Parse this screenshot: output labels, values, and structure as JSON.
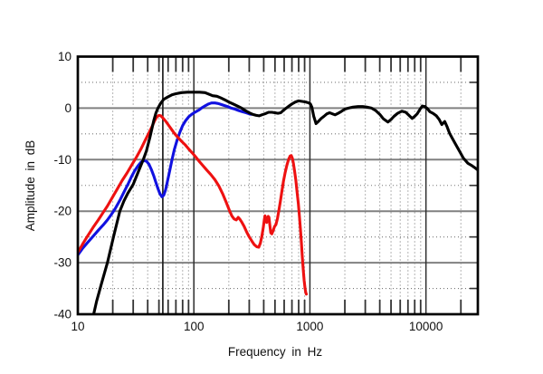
{
  "chart_data": {
    "type": "line",
    "title": "",
    "xlabel": "Frequency in Hz",
    "ylabel": "Amplitude in dB",
    "x_scale": "log",
    "xlim": [
      10,
      28000
    ],
    "ylim": [
      -40,
      10
    ],
    "grid": true,
    "legend_position": "none",
    "x_labeled_ticks": [
      {
        "value": 10,
        "label": "10"
      },
      {
        "value": 100,
        "label": "100"
      },
      {
        "value": 1000,
        "label": "1000"
      },
      {
        "value": 10000,
        "label": "10000"
      }
    ],
    "y_labeled_ticks": [
      {
        "value": 10,
        "label": "10"
      },
      {
        "value": 0,
        "label": "0"
      },
      {
        "value": -10,
        "label": "-10"
      },
      {
        "value": -20,
        "label": "-20"
      },
      {
        "value": -30,
        "label": "-30"
      },
      {
        "value": -40,
        "label": "-40"
      }
    ],
    "x_solid_gridlines": [
      100,
      1000,
      10000
    ],
    "x_minor_gridlines": [
      20,
      30,
      40,
      50,
      60,
      70,
      80,
      90,
      200,
      300,
      400,
      500,
      600,
      700,
      800,
      900,
      2000,
      3000,
      4000,
      5000,
      6000,
      7000,
      8000,
      9000,
      20000
    ],
    "y_major_gridlines": [
      0,
      -10,
      -20,
      -30
    ],
    "y_minor_gridlines": [
      5,
      -5,
      -15,
      -25,
      -35
    ],
    "cursor_marker_hz": 54,
    "style": {
      "background": "#ffffff",
      "border_color": "#000000",
      "major_h_grid_color": "#808080",
      "major_v_grid_color": "#2e2e2e",
      "minor_grid_color": "#777777",
      "tick_color": "#333333",
      "marker_color": "#1f1f1f",
      "text_color": "#111111"
    },
    "series": [
      {
        "name": "red-curve",
        "color": "#ee1111",
        "points": [
          [
            10,
            -28
          ],
          [
            11,
            -26.4
          ],
          [
            12,
            -25
          ],
          [
            13.5,
            -23.2
          ],
          [
            15,
            -21.7
          ],
          [
            16.6,
            -20.2
          ],
          [
            18,
            -19
          ],
          [
            20,
            -17.2
          ],
          [
            22,
            -15.6
          ],
          [
            24,
            -14.1
          ],
          [
            26.5,
            -12.6
          ],
          [
            29,
            -11.1
          ],
          [
            32,
            -9.5
          ],
          [
            35,
            -7.9
          ],
          [
            38,
            -6.3
          ],
          [
            41,
            -4.8
          ],
          [
            43.5,
            -3.6
          ],
          [
            46,
            -2.4
          ],
          [
            48,
            -1.7
          ],
          [
            50,
            -1.4
          ],
          [
            52,
            -1.5
          ],
          [
            54,
            -1.9
          ],
          [
            57,
            -2.5
          ],
          [
            60,
            -3.2
          ],
          [
            64,
            -4.1
          ],
          [
            68,
            -4.9
          ],
          [
            73,
            -5.7
          ],
          [
            78,
            -6.4
          ],
          [
            84,
            -7.1
          ],
          [
            90,
            -7.9
          ],
          [
            97,
            -8.7
          ],
          [
            104,
            -9.5
          ],
          [
            112,
            -10.4
          ],
          [
            120,
            -11.2
          ],
          [
            130,
            -12.1
          ],
          [
            140,
            -12.9
          ],
          [
            152,
            -13.9
          ],
          [
            164,
            -15.1
          ],
          [
            177,
            -16.6
          ],
          [
            190,
            -18.3
          ],
          [
            202,
            -19.8
          ],
          [
            212,
            -20.9
          ],
          [
            222,
            -21.5
          ],
          [
            232,
            -21.7
          ],
          [
            241,
            -21.2
          ],
          [
            250,
            -21.6
          ],
          [
            260,
            -22.2
          ],
          [
            272,
            -23
          ],
          [
            286,
            -24.1
          ],
          [
            300,
            -25
          ],
          [
            316,
            -25.8
          ],
          [
            332,
            -26.5
          ],
          [
            348,
            -26.9
          ],
          [
            362,
            -27
          ],
          [
            374,
            -26.2
          ],
          [
            386,
            -24.8
          ],
          [
            396,
            -23.2
          ],
          [
            404,
            -21.7
          ],
          [
            410,
            -20.9
          ],
          [
            416,
            -21.4
          ],
          [
            424,
            -22.2
          ],
          [
            430,
            -21.9
          ],
          [
            437,
            -21
          ],
          [
            444,
            -21.2
          ],
          [
            452,
            -22.8
          ],
          [
            460,
            -24.2
          ],
          [
            470,
            -24.4
          ],
          [
            482,
            -23.8
          ],
          [
            495,
            -23
          ],
          [
            510,
            -22.6
          ],
          [
            525,
            -21.4
          ],
          [
            540,
            -19.9
          ],
          [
            556,
            -18.1
          ],
          [
            574,
            -16.1
          ],
          [
            592,
            -14.2
          ],
          [
            612,
            -12.5
          ],
          [
            634,
            -11
          ],
          [
            656,
            -9.9
          ],
          [
            675,
            -9.3
          ],
          [
            690,
            -9.2
          ],
          [
            705,
            -9.7
          ],
          [
            720,
            -10.7
          ],
          [
            738,
            -12.2
          ],
          [
            756,
            -14
          ],
          [
            775,
            -16.2
          ],
          [
            795,
            -18.6
          ],
          [
            812,
            -20.9
          ],
          [
            828,
            -23.3
          ],
          [
            844,
            -26
          ],
          [
            860,
            -28.8
          ],
          [
            876,
            -31.4
          ],
          [
            892,
            -33.5
          ],
          [
            908,
            -35
          ],
          [
            922,
            -35.8
          ],
          [
            932,
            -36.1
          ]
        ]
      },
      {
        "name": "blue-curve",
        "color": "#1111e0",
        "points": [
          [
            10,
            -28.5
          ],
          [
            11,
            -27.2
          ],
          [
            12,
            -26.2
          ],
          [
            13.5,
            -24.9
          ],
          [
            15,
            -23.7
          ],
          [
            16.5,
            -22.7
          ],
          [
            18,
            -21.7
          ],
          [
            19.5,
            -20.6
          ],
          [
            21,
            -19.5
          ],
          [
            23,
            -17.9
          ],
          [
            25,
            -16.3
          ],
          [
            27,
            -14.8
          ],
          [
            29,
            -13.3
          ],
          [
            31,
            -12.1
          ],
          [
            33,
            -11.2
          ],
          [
            35,
            -10.5
          ],
          [
            37,
            -10.2
          ],
          [
            39,
            -10.3
          ],
          [
            41,
            -10.9
          ],
          [
            43,
            -11.9
          ],
          [
            45,
            -13.1
          ],
          [
            47,
            -14.4
          ],
          [
            49,
            -15.6
          ],
          [
            51,
            -16.6
          ],
          [
            53,
            -17.2
          ],
          [
            55,
            -16.9
          ],
          [
            57,
            -15.9
          ],
          [
            59,
            -14.4
          ],
          [
            62,
            -12.1
          ],
          [
            65,
            -9.9
          ],
          [
            68,
            -8
          ],
          [
            72,
            -6.1
          ],
          [
            76,
            -4.6
          ],
          [
            80,
            -3.4
          ],
          [
            85,
            -2.4
          ],
          [
            90,
            -1.7
          ],
          [
            96,
            -1.2
          ],
          [
            102,
            -0.8
          ],
          [
            110,
            -0.4
          ],
          [
            118,
            0.1
          ],
          [
            126,
            0.5
          ],
          [
            134,
            0.8
          ],
          [
            142,
            1
          ],
          [
            152,
            1
          ],
          [
            162,
            0.9
          ],
          [
            172,
            0.7
          ],
          [
            184,
            0.5
          ],
          [
            196,
            0.3
          ],
          [
            210,
            0
          ],
          [
            226,
            -0.2
          ],
          [
            244,
            -0.5
          ],
          [
            262,
            -0.7
          ],
          [
            282,
            -0.9
          ],
          [
            300,
            -1.1
          ],
          [
            312,
            -1.2
          ]
        ]
      },
      {
        "name": "black-curve",
        "color": "#000000",
        "points": [
          [
            13.7,
            -40
          ],
          [
            14.5,
            -37.5
          ],
          [
            16,
            -34
          ],
          [
            18,
            -30
          ],
          [
            20.3,
            -25
          ],
          [
            23,
            -20
          ],
          [
            25,
            -18
          ],
          [
            27,
            -16.5
          ],
          [
            30,
            -14.8
          ],
          [
            33,
            -12.5
          ],
          [
            36.6,
            -10
          ],
          [
            39,
            -8.3
          ],
          [
            42,
            -5.5
          ],
          [
            45,
            -2.5
          ],
          [
            47,
            -1
          ],
          [
            49,
            0
          ],
          [
            52,
            1
          ],
          [
            55,
            1.7
          ],
          [
            60,
            2.2
          ],
          [
            65,
            2.6
          ],
          [
            70,
            2.8
          ],
          [
            78,
            3
          ],
          [
            88,
            3.1
          ],
          [
            100,
            3.1
          ],
          [
            112,
            3.1
          ],
          [
            125,
            3
          ],
          [
            138,
            2.6
          ],
          [
            145,
            2.4
          ],
          [
            158,
            2.3
          ],
          [
            170,
            2
          ],
          [
            185,
            1.6
          ],
          [
            200,
            1.2
          ],
          [
            218,
            0.8
          ],
          [
            238,
            0.4
          ],
          [
            258,
            0
          ],
          [
            278,
            -0.5
          ],
          [
            300,
            -0.9
          ],
          [
            320,
            -1.2
          ],
          [
            345,
            -1.4
          ],
          [
            365,
            -1.5
          ],
          [
            385,
            -1.3
          ],
          [
            410,
            -1.1
          ],
          [
            440,
            -0.8
          ],
          [
            470,
            -0.8
          ],
          [
            500,
            -0.9
          ],
          [
            530,
            -1
          ],
          [
            560,
            -0.9
          ],
          [
            600,
            -0.3
          ],
          [
            650,
            0.3
          ],
          [
            700,
            0.8
          ],
          [
            750,
            1.2
          ],
          [
            800,
            1.4
          ],
          [
            860,
            1.3
          ],
          [
            920,
            1.2
          ],
          [
            980,
            1
          ],
          [
            1010,
            0.8
          ],
          [
            1040,
            0.2
          ],
          [
            1080,
            -1.6
          ],
          [
            1130,
            -3
          ],
          [
            1180,
            -2.6
          ],
          [
            1250,
            -2
          ],
          [
            1320,
            -1.6
          ],
          [
            1400,
            -1.1
          ],
          [
            1480,
            -0.9
          ],
          [
            1560,
            -1.1
          ],
          [
            1650,
            -1.3
          ],
          [
            1750,
            -1
          ],
          [
            1850,
            -0.7
          ],
          [
            2000,
            -0.2
          ],
          [
            2150,
            0
          ],
          [
            2350,
            0.2
          ],
          [
            2600,
            0.3
          ],
          [
            2850,
            0.3
          ],
          [
            3100,
            0.2
          ],
          [
            3400,
            0
          ],
          [
            3700,
            -0.5
          ],
          [
            4000,
            -1.2
          ],
          [
            4300,
            -2.1
          ],
          [
            4700,
            -2.7
          ],
          [
            5000,
            -2.2
          ],
          [
            5300,
            -1.6
          ],
          [
            5700,
            -1
          ],
          [
            6200,
            -0.6
          ],
          [
            6700,
            -0.8
          ],
          [
            7200,
            -1.5
          ],
          [
            7600,
            -2
          ],
          [
            8000,
            -1.6
          ],
          [
            8400,
            -1.1
          ],
          [
            8900,
            -0.2
          ],
          [
            9300,
            0.4
          ],
          [
            9800,
            0.3
          ],
          [
            10300,
            -0.1
          ],
          [
            10800,
            -0.7
          ],
          [
            11500,
            -1
          ],
          [
            12300,
            -1.5
          ],
          [
            13000,
            -2.2
          ],
          [
            13700,
            -3.2
          ],
          [
            14500,
            -2.6
          ],
          [
            15200,
            -3.6
          ],
          [
            16000,
            -4.9
          ],
          [
            17000,
            -6
          ],
          [
            18000,
            -7
          ],
          [
            19500,
            -8.4
          ],
          [
            21000,
            -9.7
          ],
          [
            23000,
            -10.7
          ],
          [
            25000,
            -11.2
          ],
          [
            26500,
            -11.6
          ],
          [
            28000,
            -12
          ]
        ]
      }
    ]
  }
}
